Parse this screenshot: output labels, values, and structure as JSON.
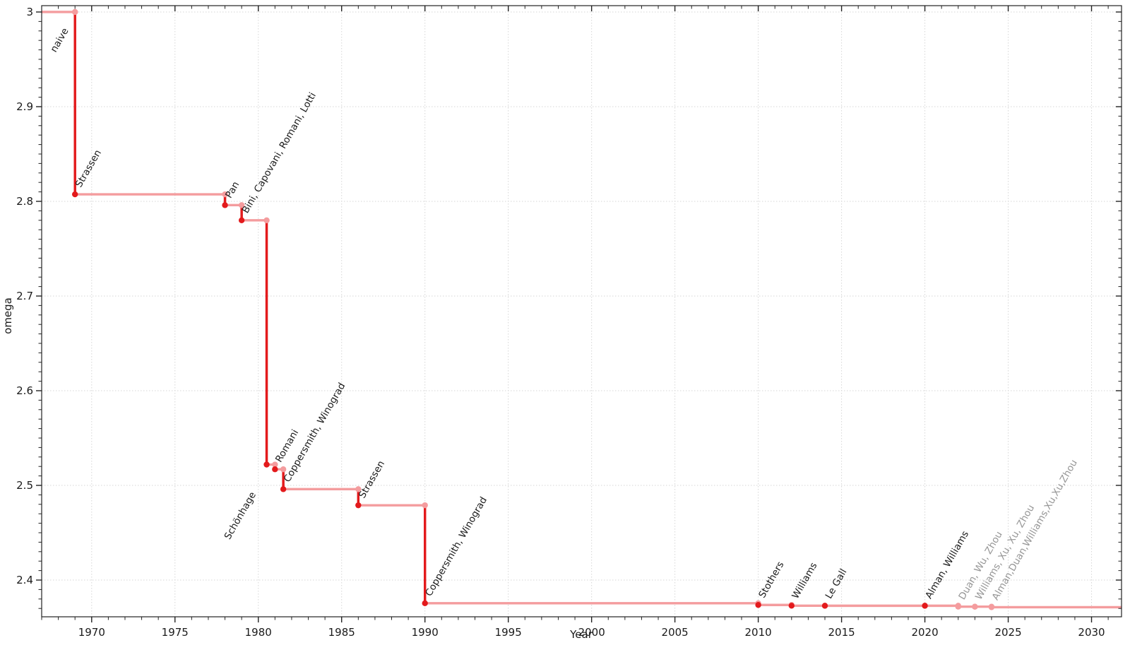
{
  "figure": {
    "background": "#ffffff",
    "description": "Step chart of the best known upper bound on the matrix multiplication exponent omega over time"
  },
  "chart_data": {
    "type": "line",
    "subtype": "step-post",
    "title": "",
    "xlabel": "Year",
    "ylabel": "omega",
    "xlim": [
      1967.0,
      2031.8
    ],
    "ylim": [
      2.3612,
      3.0067
    ],
    "x_ticks": [
      1970,
      1975,
      1980,
      1985,
      1990,
      1995,
      2000,
      2005,
      2010,
      2015,
      2020,
      2025,
      2030
    ],
    "x_minor_step": 1,
    "y_ticks": [
      2.4,
      2.5,
      2.6,
      2.7,
      2.8,
      2.9,
      3.0
    ],
    "y_minor_step": 0.01,
    "grid": {
      "show": true,
      "style": "dotted",
      "color": "#d6d6d6"
    },
    "legend": {
      "show": false
    },
    "colors": {
      "new_bound_line": "#e31a1c",
      "history_line": "#f49c9e",
      "marker_new": "#e31a1c",
      "marker_old": "#f49c9e",
      "label_text": "#1c1c1c",
      "label_text_unverified": "#969696",
      "axis": "#222222",
      "tick_label": "#1a1a1a"
    },
    "points": [
      {
        "label": "naive",
        "year": 1969,
        "omega": 3.0,
        "label_pos": "below-end",
        "label_offset": [
          -9,
          26
        ],
        "marker": "old"
      },
      {
        "label": "Strassen",
        "year": 1969,
        "omega": 2.8074,
        "label_pos": "above-start"
      },
      {
        "label": "Pan",
        "year": 1978,
        "omega": 2.796,
        "label_pos": "above-start"
      },
      {
        "label": "Bini, Capovani, Romani, Lotti",
        "year": 1979,
        "omega": 2.78,
        "label_pos": "above-start"
      },
      {
        "label": "Schönhage",
        "year": 1980.5,
        "omega": 2.522,
        "label_pos": "below-end",
        "label_offset": [
          -15,
          42
        ]
      },
      {
        "label": "Romani",
        "year": 1981,
        "omega": 2.517,
        "label_pos": "above-start"
      },
      {
        "label": "Coppersmith, Winograd",
        "year": 1981.5,
        "omega": 2.496,
        "label_pos": "above-start"
      },
      {
        "label": "Strassen",
        "year": 1986,
        "omega": 2.479,
        "label_pos": "above-start"
      },
      {
        "label": "Coppersmith, Winograd",
        "year": 1990,
        "omega": 2.3755,
        "label_pos": "above-start"
      },
      {
        "label": "Stothers",
        "year": 2010,
        "omega": 2.3737,
        "label_pos": "above-start"
      },
      {
        "label": "Williams",
        "year": 2012,
        "omega": 2.3729,
        "label_pos": "above-start"
      },
      {
        "label": "Le Gall",
        "year": 2014,
        "omega": 2.3728639,
        "label_pos": "above-start"
      },
      {
        "label": "Alman, Williams",
        "year": 2020,
        "omega": 2.3728596,
        "label_pos": "above-start"
      },
      {
        "label": "Duan, Wu, Zhou",
        "year": 2022,
        "omega": 2.37188,
        "label_pos": "above-start",
        "unverified": true
      },
      {
        "label": "Williams, Xu, Xu, Zhou",
        "year": 2023,
        "omega": 2.371866,
        "label_pos": "above-start",
        "unverified": true
      },
      {
        "label": "Alman,Duan,Williams,Xu,Xu,Zhou",
        "year": 2024,
        "omega": 2.371339,
        "label_pos": "above-start",
        "unverified": true
      }
    ],
    "annotation_rotation_deg": -60
  }
}
